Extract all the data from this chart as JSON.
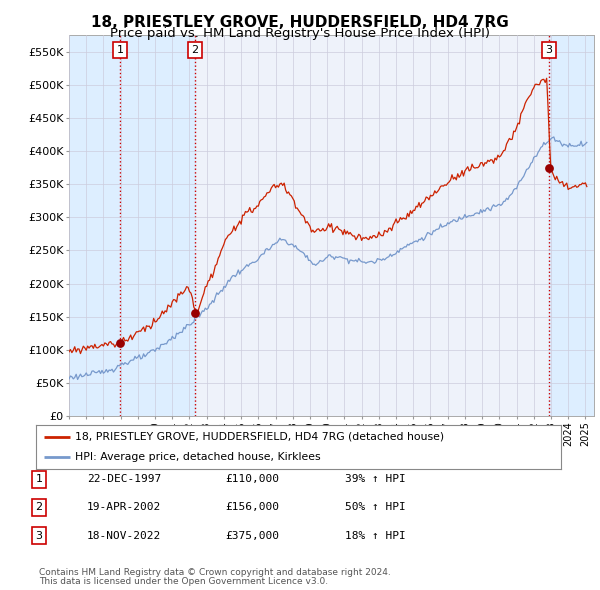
{
  "title": "18, PRIESTLEY GROVE, HUDDERSFIELD, HD4 7RG",
  "subtitle": "Price paid vs. HM Land Registry's House Price Index (HPI)",
  "ylabel_ticks": [
    "£0",
    "£50K",
    "£100K",
    "£150K",
    "£200K",
    "£250K",
    "£300K",
    "£350K",
    "£400K",
    "£450K",
    "£500K",
    "£550K"
  ],
  "ytick_values": [
    0,
    50000,
    100000,
    150000,
    200000,
    250000,
    300000,
    350000,
    400000,
    450000,
    500000,
    550000
  ],
  "xmin": 1995.0,
  "xmax": 2025.5,
  "ymin": 0,
  "ymax": 575000,
  "sale_dates": [
    1997.97,
    2002.3,
    2022.88
  ],
  "sale_prices": [
    110000,
    156000,
    375000
  ],
  "sale_labels": [
    "1",
    "2",
    "3"
  ],
  "vline_color": "#cc0000",
  "sale_marker_color": "#990000",
  "hpi_line_color": "#7799cc",
  "price_line_color": "#cc2200",
  "shade_color": "#ddeeff",
  "legend_entries": [
    "18, PRIESTLEY GROVE, HUDDERSFIELD, HD4 7RG (detached house)",
    "HPI: Average price, detached house, Kirklees"
  ],
  "table_rows": [
    [
      "1",
      "22-DEC-1997",
      "£110,000",
      "39% ↑ HPI"
    ],
    [
      "2",
      "19-APR-2002",
      "£156,000",
      "50% ↑ HPI"
    ],
    [
      "3",
      "18-NOV-2022",
      "£375,000",
      "18% ↑ HPI"
    ]
  ],
  "footnote1": "Contains HM Land Registry data © Crown copyright and database right 2024.",
  "footnote2": "This data is licensed under the Open Government Licence v3.0.",
  "background_color": "#ffffff",
  "plot_bg_color": "#eef2fa",
  "grid_color": "#ccccdd",
  "title_fontsize": 11,
  "subtitle_fontsize": 9.5
}
